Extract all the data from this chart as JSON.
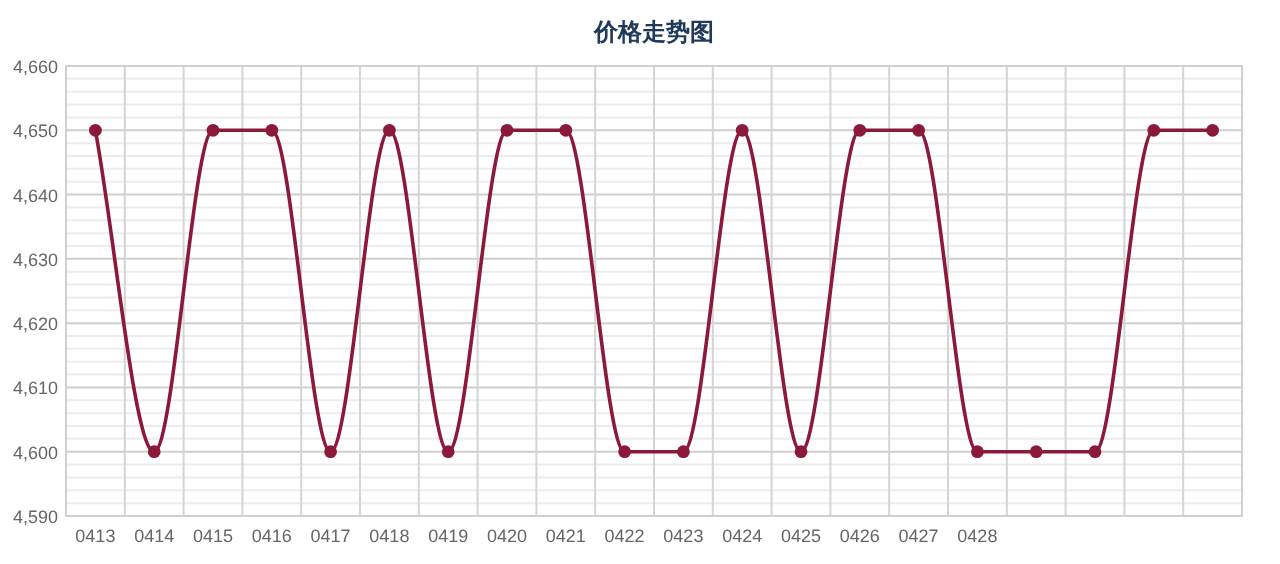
{
  "chart_data": {
    "type": "line",
    "title": "价格走势图",
    "categories": [
      "0413",
      "0414",
      "0415",
      "0416",
      "0417",
      "0418",
      "0419",
      "0420",
      "0421",
      "0422",
      "0423",
      "0424",
      "0425",
      "0426",
      "0427",
      "0428",
      null,
      null,
      null,
      null
    ],
    "series": [
      {
        "color": "#8b1a3a",
        "values": [
          4650,
          4600,
          4650,
          4650,
          4600,
          4650,
          4600,
          4650,
          4650,
          4600,
          4600,
          4650,
          4600,
          4650,
          4650,
          4600,
          4600,
          4600,
          4650,
          4650
        ]
      }
    ],
    "ylim": [
      4590,
      4660
    ],
    "yticks": [
      {
        "value": 4590,
        "label": "4,590"
      },
      {
        "value": 4600,
        "label": "4,600"
      },
      {
        "value": 4610,
        "label": "4,610"
      },
      {
        "value": 4620,
        "label": "4,620"
      },
      {
        "value": 4630,
        "label": "4,630"
      },
      {
        "value": 4640,
        "label": "4,640"
      },
      {
        "value": 4650,
        "label": "4,650"
      },
      {
        "value": 4660,
        "label": "4,660"
      }
    ],
    "grid": true,
    "marker": "circle"
  }
}
